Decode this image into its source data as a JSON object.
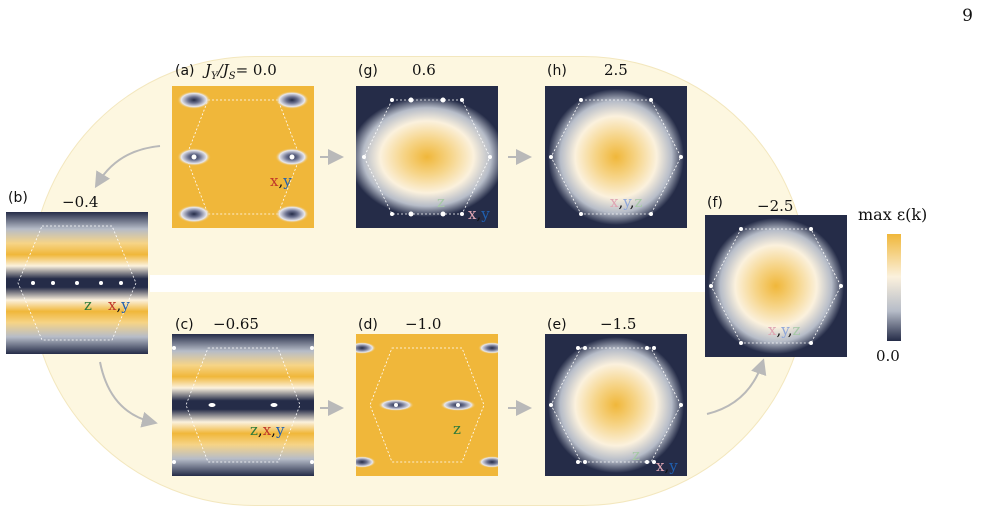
{
  "page_number": "9",
  "panels": {
    "a": {
      "label": "(a)",
      "value_prefix": "J",
      "sub_y": "Y",
      "sub_s": "S",
      "value_eq": "= 0.0"
    },
    "b": {
      "label": "(b)",
      "value": "−0.4"
    },
    "c": {
      "label": "(c)",
      "value": "−0.65"
    },
    "d": {
      "label": "(d)",
      "value": "−1.0"
    },
    "e": {
      "label": "(e)",
      "value": "−1.5"
    },
    "f": {
      "label": "(f)",
      "value": "−2.5"
    },
    "g": {
      "label": "(g)",
      "value": "0.6"
    },
    "h": {
      "label": "(h)",
      "value": "2.5"
    }
  },
  "annotations": {
    "x": "x",
    "y": "y",
    "z": "z",
    "comma": ","
  },
  "colorbar": {
    "title": "max ε(k)",
    "min_label": "0.0"
  },
  "colors": {
    "high": "#f0b73a",
    "low": "#252c48",
    "track": "#fdf7e0"
  }
}
